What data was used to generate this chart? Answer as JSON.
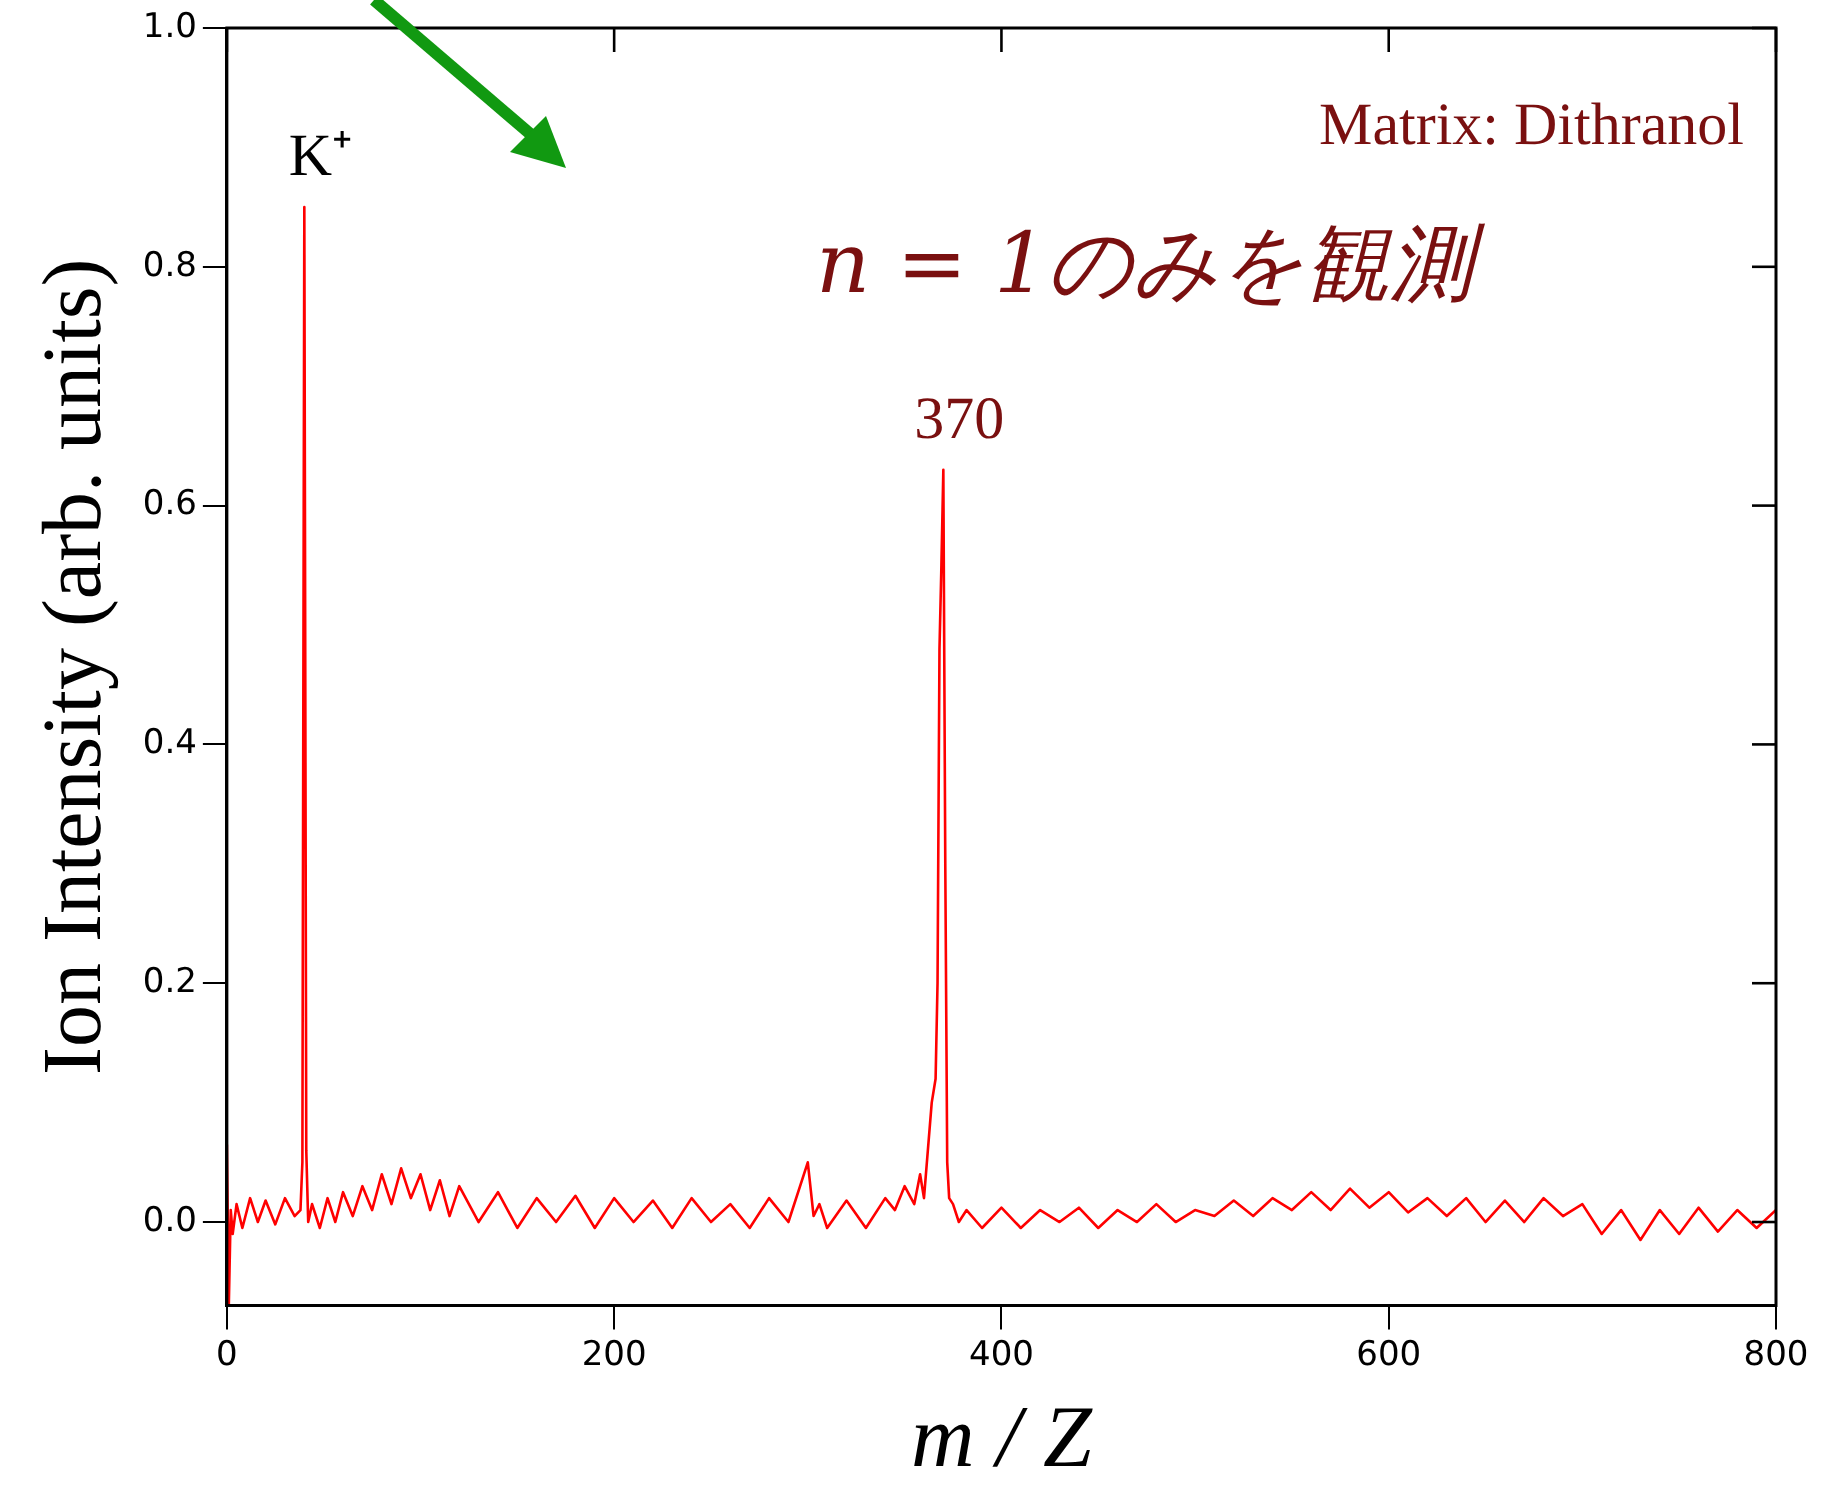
{
  "chart_data": {
    "type": "line",
    "xlabel": "m / Z",
    "ylabel": "Ion Intensity (arb. units)",
    "xlim": [
      0,
      800
    ],
    "ylim": [
      -0.07,
      1.0
    ],
    "xticks": [
      0,
      200,
      400,
      600,
      800
    ],
    "yticks": [
      {
        "value": 0,
        "label": "0.0"
      },
      0.2,
      0.4,
      0.6,
      0.8,
      {
        "value": 1,
        "label": "1.0"
      }
    ],
    "grid": false,
    "legend": false,
    "marker": "none",
    "line_style": "solid",
    "series": [
      {
        "color": "#ff0000",
        "x": [
          0,
          1,
          2,
          3,
          5,
          8,
          12,
          16,
          20,
          25,
          30,
          35,
          38,
          39,
          40,
          41,
          42,
          44,
          48,
          52,
          56,
          60,
          65,
          70,
          75,
          80,
          85,
          90,
          95,
          100,
          105,
          110,
          115,
          120,
          130,
          140,
          150,
          160,
          170,
          180,
          190,
          200,
          210,
          220,
          230,
          240,
          250,
          260,
          270,
          280,
          290,
          300,
          303,
          306,
          310,
          320,
          330,
          340,
          345,
          350,
          355,
          358,
          360,
          362,
          364,
          366,
          367,
          368,
          369,
          370,
          371,
          372,
          373,
          375,
          378,
          382,
          390,
          400,
          410,
          420,
          430,
          440,
          450,
          460,
          470,
          480,
          490,
          500,
          510,
          520,
          530,
          540,
          550,
          560,
          570,
          580,
          590,
          600,
          610,
          620,
          630,
          640,
          650,
          660,
          670,
          680,
          690,
          700,
          710,
          720,
          730,
          740,
          750,
          760,
          770,
          780,
          790,
          800
        ],
        "values": [
          0.065,
          -0.07,
          0.01,
          -0.01,
          0.015,
          -0.005,
          0.02,
          0,
          0.018,
          -0.002,
          0.02,
          0.005,
          0.01,
          0.05,
          0.85,
          0.06,
          0.0,
          0.015,
          -0.005,
          0.02,
          0.0,
          0.025,
          0.005,
          0.03,
          0.01,
          0.04,
          0.015,
          0.045,
          0.02,
          0.04,
          0.01,
          0.035,
          0.005,
          0.03,
          0.0,
          0.025,
          -0.005,
          0.02,
          0.0,
          0.022,
          -0.005,
          0.02,
          0.0,
          0.018,
          -0.005,
          0.02,
          0.0,
          0.015,
          -0.005,
          0.02,
          0.0,
          0.05,
          0.005,
          0.015,
          -0.005,
          0.018,
          -0.005,
          0.02,
          0.01,
          0.03,
          0.015,
          0.04,
          0.02,
          0.06,
          0.1,
          0.12,
          0.2,
          0.48,
          0.55,
          0.63,
          0.3,
          0.05,
          0.02,
          0.015,
          0.0,
          0.01,
          -0.005,
          0.012,
          -0.005,
          0.01,
          0.0,
          0.012,
          -0.005,
          0.01,
          0.0,
          0.015,
          0.0,
          0.01,
          0.005,
          0.018,
          0.005,
          0.02,
          0.01,
          0.025,
          0.01,
          0.028,
          0.012,
          0.025,
          0.008,
          0.02,
          0.005,
          0.02,
          0.0,
          0.018,
          0.0,
          0.02,
          0.005,
          0.015,
          -0.01,
          0.01,
          -0.015,
          0.01,
          -0.01,
          0.012,
          -0.008,
          0.01,
          -0.005,
          0.01
        ]
      }
    ],
    "annotations": [
      {
        "text": "K⁺",
        "x": 40,
        "y": 0.85
      },
      {
        "text": "370",
        "x": 370,
        "y": 0.63
      },
      "Matrix: Dithranol",
      "n = 1のみを観測"
    ]
  }
}
